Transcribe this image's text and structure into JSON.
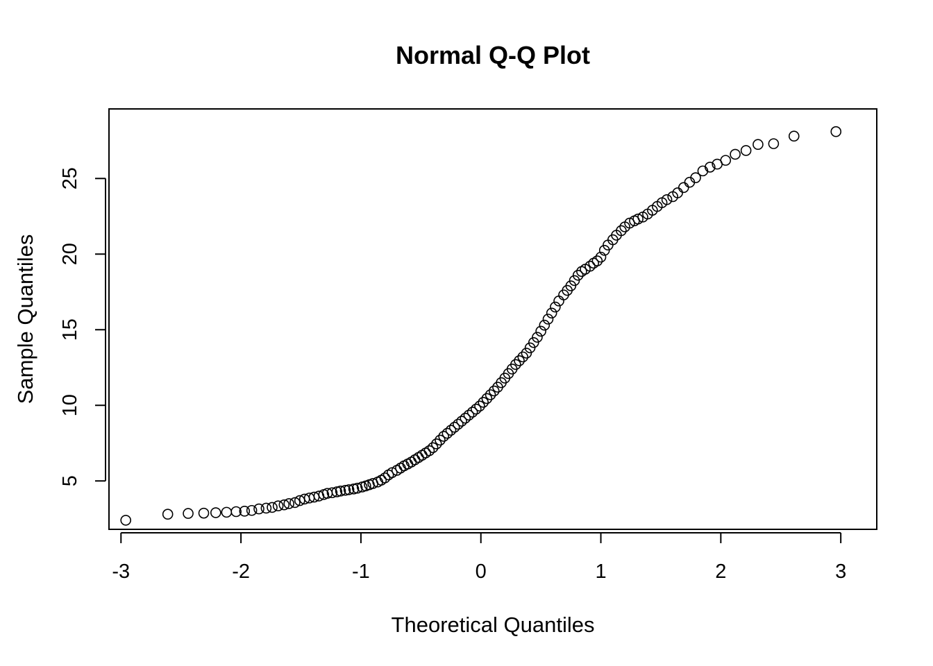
{
  "chart_data": {
    "type": "scatter",
    "title": "Normal Q-Q Plot",
    "xlabel": "Theoretical Quantiles",
    "ylabel": "Sample Quantiles",
    "xlim": [
      -3.1,
      3.3
    ],
    "ylim": [
      1.8,
      29.6
    ],
    "x_ticks": [
      -3,
      -2,
      -1,
      0,
      1,
      2,
      3
    ],
    "x_tick_labels": [
      "-3",
      "-2",
      "-1",
      "0",
      "1",
      "2",
      "3"
    ],
    "y_ticks": [
      5,
      10,
      15,
      20,
      25
    ],
    "y_tick_labels": [
      "5",
      "10",
      "15",
      "20",
      "25"
    ],
    "grid": false,
    "marker": "open-circle",
    "marker_color": "#000000",
    "series": [
      {
        "points": [
          [
            -2.96,
            2.4
          ],
          [
            -2.61,
            2.8
          ],
          [
            -2.44,
            2.85
          ],
          [
            -2.31,
            2.87
          ],
          [
            -2.21,
            2.9
          ],
          [
            -2.12,
            2.93
          ],
          [
            -2.04,
            2.97
          ],
          [
            -1.97,
            3.0
          ],
          [
            -1.91,
            3.05
          ],
          [
            -1.85,
            3.15
          ],
          [
            -1.79,
            3.2
          ],
          [
            -1.74,
            3.25
          ],
          [
            -1.69,
            3.35
          ],
          [
            -1.64,
            3.42
          ],
          [
            -1.6,
            3.5
          ],
          [
            -1.55,
            3.57
          ],
          [
            -1.51,
            3.7
          ],
          [
            -1.47,
            3.8
          ],
          [
            -1.43,
            3.87
          ],
          [
            -1.39,
            3.93
          ],
          [
            -1.35,
            4.0
          ],
          [
            -1.31,
            4.1
          ],
          [
            -1.28,
            4.18
          ],
          [
            -1.24,
            4.22
          ],
          [
            -1.2,
            4.28
          ],
          [
            -1.17,
            4.33
          ],
          [
            -1.13,
            4.38
          ],
          [
            -1.1,
            4.42
          ],
          [
            -1.06,
            4.47
          ],
          [
            -1.03,
            4.52
          ],
          [
            -0.99,
            4.6
          ],
          [
            -0.96,
            4.67
          ],
          [
            -0.93,
            4.75
          ],
          [
            -0.9,
            4.83
          ],
          [
            -0.86,
            4.93
          ],
          [
            -0.83,
            5.05
          ],
          [
            -0.8,
            5.2
          ],
          [
            -0.77,
            5.4
          ],
          [
            -0.74,
            5.55
          ],
          [
            -0.7,
            5.7
          ],
          [
            -0.67,
            5.85
          ],
          [
            -0.64,
            6.0
          ],
          [
            -0.61,
            6.12
          ],
          [
            -0.58,
            6.25
          ],
          [
            -0.55,
            6.4
          ],
          [
            -0.52,
            6.55
          ],
          [
            -0.49,
            6.7
          ],
          [
            -0.46,
            6.85
          ],
          [
            -0.43,
            7.0
          ],
          [
            -0.4,
            7.2
          ],
          [
            -0.37,
            7.45
          ],
          [
            -0.34,
            7.7
          ],
          [
            -0.31,
            7.95
          ],
          [
            -0.28,
            8.15
          ],
          [
            -0.25,
            8.35
          ],
          [
            -0.22,
            8.55
          ],
          [
            -0.19,
            8.75
          ],
          [
            -0.16,
            8.95
          ],
          [
            -0.13,
            9.15
          ],
          [
            -0.1,
            9.35
          ],
          [
            -0.07,
            9.55
          ],
          [
            -0.04,
            9.75
          ],
          [
            -0.01,
            9.95
          ],
          [
            0.02,
            10.2
          ],
          [
            0.05,
            10.45
          ],
          [
            0.08,
            10.7
          ],
          [
            0.11,
            10.95
          ],
          [
            0.14,
            11.2
          ],
          [
            0.17,
            11.5
          ],
          [
            0.2,
            11.8
          ],
          [
            0.23,
            12.1
          ],
          [
            0.26,
            12.4
          ],
          [
            0.29,
            12.7
          ],
          [
            0.32,
            12.95
          ],
          [
            0.35,
            13.2
          ],
          [
            0.38,
            13.45
          ],
          [
            0.41,
            13.8
          ],
          [
            0.44,
            14.15
          ],
          [
            0.47,
            14.5
          ],
          [
            0.5,
            14.9
          ],
          [
            0.53,
            15.3
          ],
          [
            0.56,
            15.7
          ],
          [
            0.59,
            16.1
          ],
          [
            0.62,
            16.5
          ],
          [
            0.65,
            16.9
          ],
          [
            0.69,
            17.3
          ],
          [
            0.72,
            17.6
          ],
          [
            0.75,
            17.9
          ],
          [
            0.78,
            18.25
          ],
          [
            0.81,
            18.6
          ],
          [
            0.84,
            18.85
          ],
          [
            0.87,
            19.0
          ],
          [
            0.91,
            19.2
          ],
          [
            0.94,
            19.4
          ],
          [
            0.97,
            19.55
          ],
          [
            1.0,
            19.8
          ],
          [
            1.03,
            20.25
          ],
          [
            1.06,
            20.6
          ],
          [
            1.1,
            20.95
          ],
          [
            1.13,
            21.25
          ],
          [
            1.17,
            21.55
          ],
          [
            1.2,
            21.8
          ],
          [
            1.24,
            22.05
          ],
          [
            1.28,
            22.2
          ],
          [
            1.31,
            22.32
          ],
          [
            1.35,
            22.45
          ],
          [
            1.39,
            22.65
          ],
          [
            1.43,
            22.9
          ],
          [
            1.47,
            23.15
          ],
          [
            1.51,
            23.4
          ],
          [
            1.55,
            23.6
          ],
          [
            1.6,
            23.8
          ],
          [
            1.64,
            24.05
          ],
          [
            1.69,
            24.4
          ],
          [
            1.74,
            24.75
          ],
          [
            1.79,
            25.05
          ],
          [
            1.85,
            25.5
          ],
          [
            1.91,
            25.75
          ],
          [
            1.97,
            25.95
          ],
          [
            2.04,
            26.2
          ],
          [
            2.12,
            26.6
          ],
          [
            2.21,
            26.85
          ],
          [
            2.31,
            27.25
          ],
          [
            2.44,
            27.3
          ],
          [
            2.61,
            27.8
          ],
          [
            2.96,
            28.1
          ]
        ]
      }
    ]
  }
}
